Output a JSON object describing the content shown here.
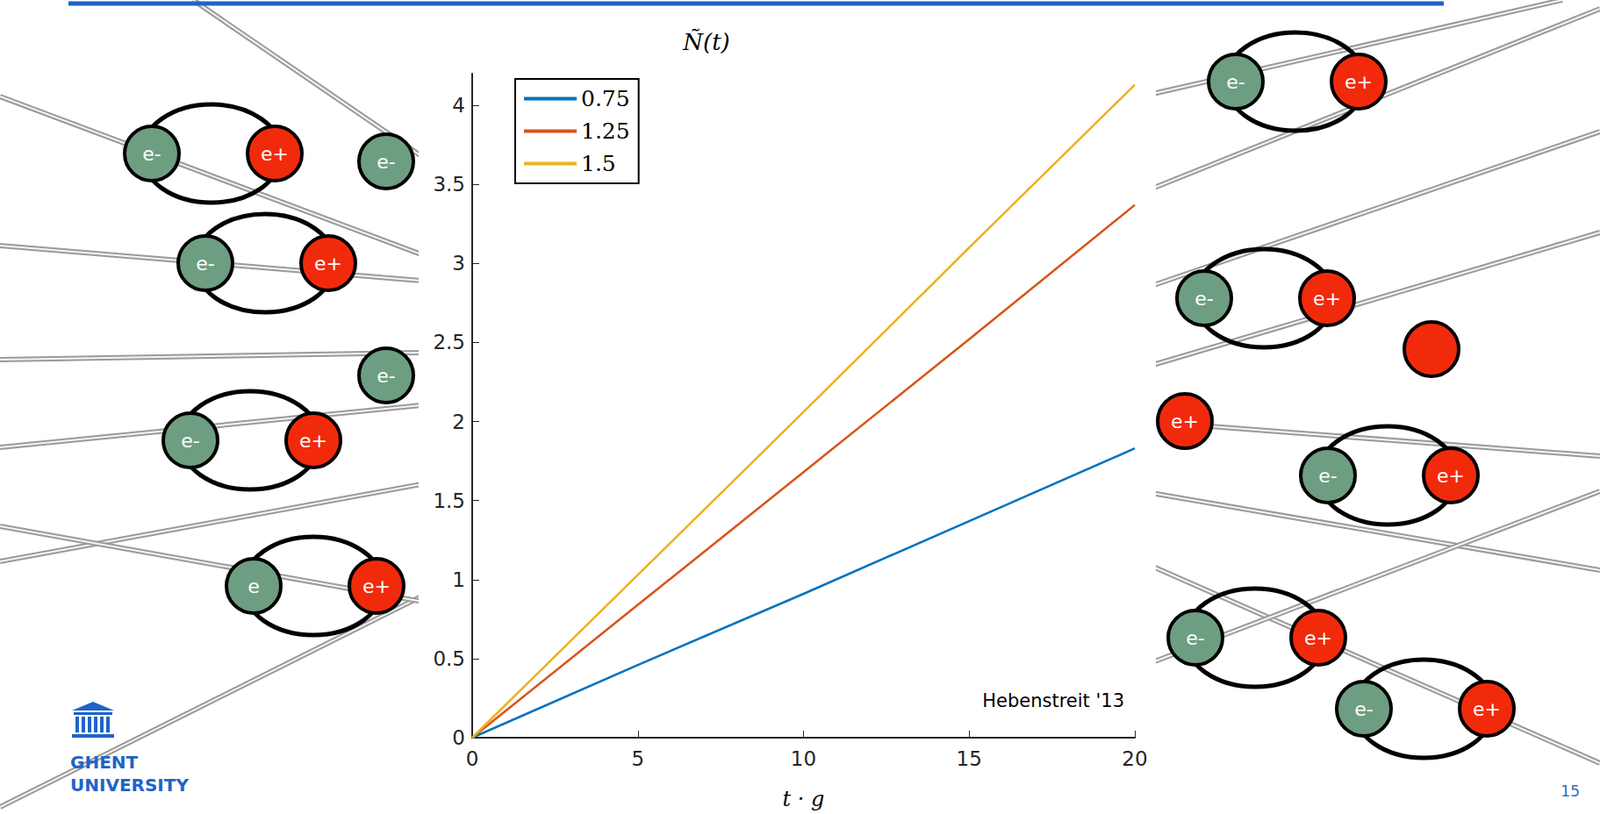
{
  "chart_data": {
    "type": "line",
    "title": "Ñ(t)",
    "xlabel": "t · g",
    "x": [
      0,
      5,
      10,
      15,
      20
    ],
    "series": [
      {
        "name": "0.75",
        "color": "#0072BD",
        "values": [
          0,
          0.46,
          0.91,
          1.37,
          1.83
        ]
      },
      {
        "name": "1.25",
        "color": "#D95319",
        "values": [
          0,
          0.84,
          1.68,
          2.52,
          3.37
        ]
      },
      {
        "name": "1.5",
        "color": "#EDB120",
        "values": [
          0,
          1.03,
          2.06,
          3.1,
          4.13
        ]
      }
    ],
    "xlim": [
      0,
      20
    ],
    "xticks": [
      0,
      5,
      10,
      15,
      20
    ],
    "ylim": [
      0,
      4.2
    ],
    "yticks": [
      0,
      0.5,
      1,
      1.5,
      2,
      2.5,
      3,
      3.5,
      4
    ],
    "grid": false,
    "legend": "upper left",
    "annotations": [
      "Hebenstreit '13"
    ]
  },
  "page": {
    "logo": [
      "GHENT",
      "UNIVERSITY"
    ],
    "slide_number": 15,
    "pairs": [
      {
        "electron": "e-",
        "positron": "e+"
      },
      {
        "electron": "e-",
        "positron": "e+"
      },
      {
        "electron": "e-",
        "positron": "e+"
      },
      {
        "electron": "e",
        "positron": "e+"
      },
      {
        "electron": "e-",
        "positron": "e+"
      },
      {
        "electron": "e-",
        "positron": "e+"
      },
      {
        "electron": "e-",
        "positron": "e+"
      },
      {
        "electron": "e-",
        "positron": "e+"
      },
      {
        "electron": "e-",
        "positron": "e+"
      }
    ],
    "lone_particles": [
      "e-",
      "e-",
      "e+"
    ]
  }
}
